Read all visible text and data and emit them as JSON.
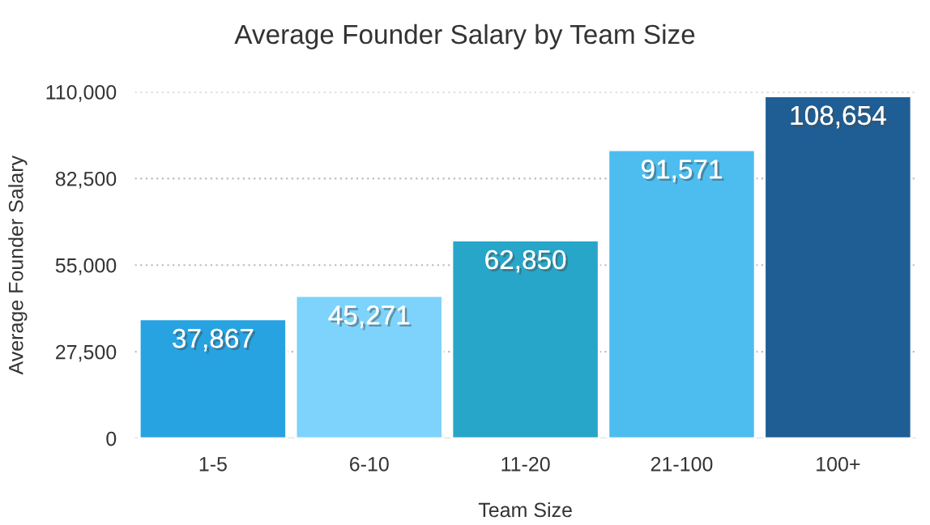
{
  "chart_data": {
    "type": "bar",
    "title": "Average Founder Salary by Team Size",
    "xlabel": "Team Size",
    "ylabel": "Average Founder Salary",
    "categories": [
      "1-5",
      "6-10",
      "11-20",
      "21-100",
      "100+"
    ],
    "values": [
      37867,
      45271,
      62850,
      91571,
      108654
    ],
    "colors": [
      "#27a3e1",
      "#7dd3fb",
      "#28a6c9",
      "#4dbdf0",
      "#1e5e95"
    ],
    "value_labels": [
      "37,867",
      "45,271",
      "62,850",
      "91,571",
      "108,654"
    ],
    "ylim": [
      0,
      110000
    ],
    "yticks": [
      {
        "value": 0,
        "label": "0"
      },
      {
        "value": 27500,
        "label": "27,500"
      },
      {
        "value": 55000,
        "label": "55,000"
      },
      {
        "value": 82500,
        "label": "82,500"
      },
      {
        "value": 110000,
        "label": "110,000"
      }
    ],
    "grid": "y"
  }
}
